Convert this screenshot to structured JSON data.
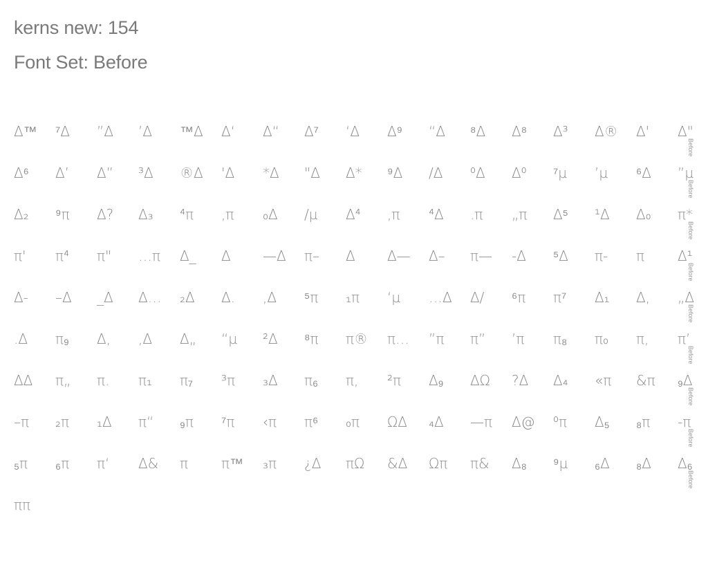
{
  "header": {
    "title": "kerns new: 154",
    "subtitle": "Font Set: Before"
  },
  "row_label": "Before",
  "rows": [
    [
      "Δ™",
      "⁷Δ",
      "”Δ",
      "’Δ",
      "™Δ",
      "Δ‘",
      "Δ“",
      "Δ⁷",
      "‘Δ",
      "Δ⁹",
      "“Δ",
      "⁸Δ",
      "Δ⁸",
      "Δ³",
      "Δ®",
      "Δ'",
      "Δ\""
    ],
    [
      "Δ⁶",
      "Δ’",
      "Δ”",
      "³Δ",
      "®Δ",
      "'Δ",
      "*Δ",
      "\"Δ",
      "Δ*",
      "⁹Δ",
      "/Δ",
      "⁰Δ",
      "Δ⁰",
      "⁷µ",
      "’µ",
      "⁶Δ",
      "”µ"
    ],
    [
      "Δ₂",
      "⁹π",
      "Δ?",
      "Δ₃",
      "⁴π",
      ",π",
      "₀Δ",
      "/µ",
      "Δ⁴",
      ",π",
      "⁴Δ",
      ".π",
      "„π",
      "Δ⁵",
      "¹Δ",
      "Δ₀",
      "π*"
    ],
    [
      "π'",
      "π⁴",
      "π\"",
      "…π",
      "Δ_",
      "Δ",
      "—Δ",
      "π–",
      "Δ",
      "Δ—",
      "Δ–",
      "π—",
      "-Δ",
      "⁵Δ",
      "π-",
      "π",
      "Δ¹"
    ],
    [
      "Δ-",
      "–Δ",
      "_Δ",
      "Δ…",
      "₂Δ",
      "Δ.",
      ",Δ",
      "⁵π",
      "₁π",
      "‘µ",
      "…Δ",
      "Δ/",
      "⁶π",
      "π⁷",
      "Δ₁",
      "Δ,",
      "„Δ"
    ],
    [
      ".Δ",
      "π₉",
      "Δ,",
      ",Δ",
      "Δ„",
      "“µ",
      "²Δ",
      "⁸π",
      "π®",
      "π…",
      "”π",
      "π”",
      "’π",
      "π₈",
      "π₀",
      "π,",
      "π’"
    ],
    [
      "ΔΔ",
      "π„",
      "π.",
      "π₁",
      "π₇",
      "³π",
      "₃Δ",
      "π₆",
      "π,",
      "²π",
      "Δ₉",
      "ΔΩ",
      "?Δ",
      "Δ₄",
      "«π",
      "&π",
      "₉Δ"
    ],
    [
      "–π",
      "₂π",
      "₁Δ",
      "π“",
      "₉π",
      "⁷π",
      "‹π",
      "π⁶",
      "₀π",
      "ΩΔ",
      "₄Δ",
      "—π",
      "Δ@",
      "⁰π",
      "Δ₅",
      "₈π",
      "-π"
    ],
    [
      "₅π",
      "₆π",
      "π‘",
      "Δ&",
      "π",
      "π™",
      "₃π",
      "¿Δ",
      "πΩ",
      "&Δ",
      "Ωπ",
      "π&",
      "Δ₈",
      "⁹µ",
      "₆Δ",
      "₈Δ",
      "Δ₆"
    ],
    [
      "ππ"
    ]
  ]
}
